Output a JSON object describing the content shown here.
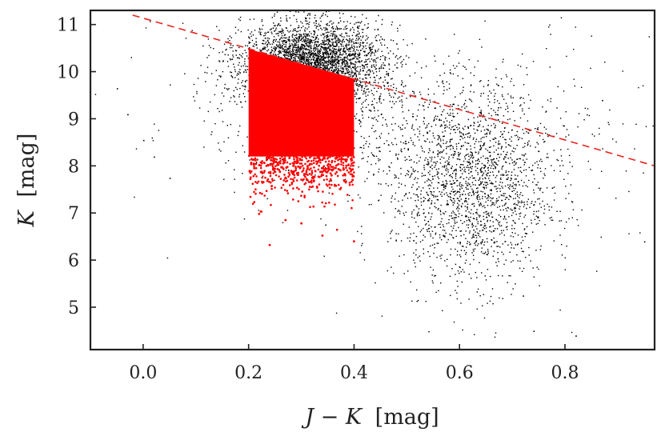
{
  "chart_data": {
    "type": "scatter",
    "title": "",
    "xlabel": {
      "var": "J − K",
      "unit": "[mag]"
    },
    "ylabel": {
      "var": "K",
      "unit": "[mag]"
    },
    "xlim": [
      -0.1,
      0.97
    ],
    "ylim": [
      4.1,
      11.3
    ],
    "xticks": [
      0.0,
      0.2,
      0.4,
      0.6,
      0.8
    ],
    "xtick_labels": [
      "0.0",
      "0.2",
      "0.4",
      "0.6",
      "0.8"
    ],
    "yticks": [
      5,
      6,
      7,
      8,
      9,
      10,
      11
    ],
    "ytick_labels": [
      "5",
      "6",
      "7",
      "8",
      "9",
      "10",
      "11"
    ],
    "grid": false,
    "legend": "none",
    "colors": {
      "all_stars": "#000000",
      "selected": "#ff0000",
      "boundary_line": "#e8231f"
    },
    "series": [
      {
        "id": "all-stars",
        "color": "#000000",
        "clusters": [
          {
            "cx": 0.32,
            "cy": 10.2,
            "sx": 0.065,
            "sy": 0.42,
            "n": 3000
          },
          {
            "cx": 0.3,
            "cy": 9.6,
            "sx": 0.085,
            "sy": 0.7,
            "n": 700
          },
          {
            "cx": 0.62,
            "cy": 7.5,
            "sx": 0.075,
            "sy": 1.0,
            "n": 1700
          },
          {
            "cx": 0.6,
            "cy": 8.6,
            "sx": 0.14,
            "sy": 0.8,
            "n": 420
          },
          {
            "cx": 0.45,
            "cy": 9.2,
            "sx": 0.25,
            "sy": 1.3,
            "n": 260
          }
        ],
        "sample_points": [
          [
            -0.05,
            9.65
          ],
          [
            -0.03,
            9.1
          ],
          [
            0.0,
            8.55
          ],
          [
            0.02,
            8.2
          ],
          [
            0.05,
            7.75
          ],
          [
            0.48,
            10.6
          ],
          [
            0.72,
            5.25
          ],
          [
            0.82,
            4.4
          ],
          [
            0.74,
            4.5
          ],
          [
            0.95,
            6.4
          ],
          [
            0.87,
            9.4
          ]
        ]
      },
      {
        "id": "selected-stars",
        "color": "#ff0000",
        "region": {
          "x_range": [
            0.2,
            0.4
          ],
          "upper_left": 10.48,
          "upper_right": 9.85,
          "dense_bottom": 8.2
        },
        "sample_points": [
          [
            0.24,
            6.32
          ],
          [
            0.4,
            6.4
          ],
          [
            0.34,
            6.52
          ],
          [
            0.22,
            6.98
          ],
          [
            0.3,
            6.78
          ],
          [
            0.27,
            6.85
          ]
        ]
      }
    ],
    "boundary_line": {
      "style": "dashed",
      "color": "#e8231f",
      "points": [
        [
          -0.02,
          11.2
        ],
        [
          0.97,
          8.0
        ]
      ]
    }
  }
}
